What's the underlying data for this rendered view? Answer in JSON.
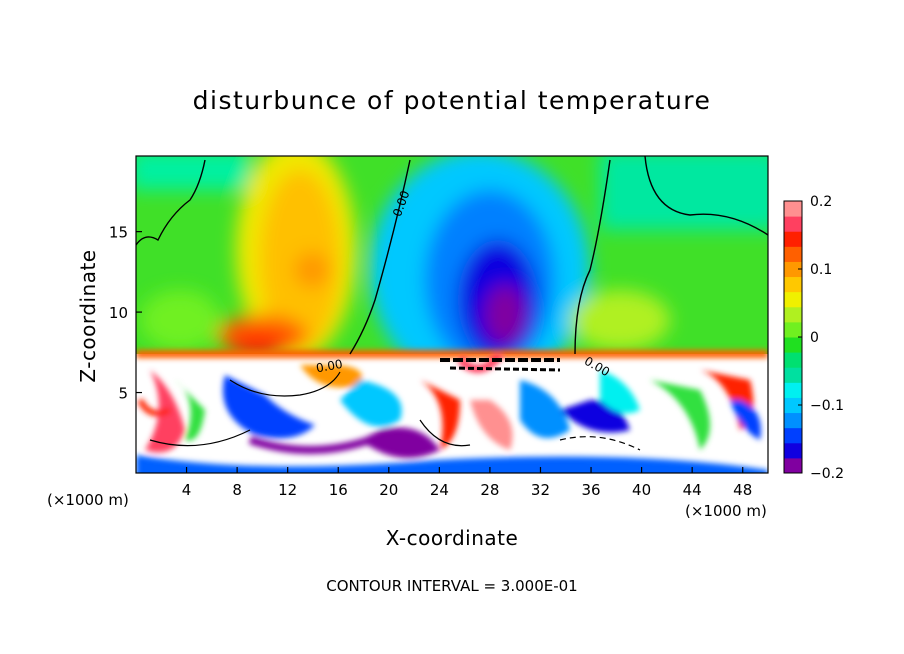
{
  "chart_data": {
    "type": "heatmap",
    "title": "disturbunce of potential temperature",
    "xlabel": "X-coordinate",
    "ylabel": "Z-coordinate",
    "x_unit": "(×1000 m)",
    "z_unit": "(×1000 m)",
    "xlim": [
      0,
      50
    ],
    "zlim": [
      0,
      19.7
    ],
    "x_ticks": [
      4,
      8,
      12,
      16,
      20,
      24,
      28,
      32,
      36,
      40,
      44,
      48
    ],
    "z_ticks": [
      5,
      10,
      15
    ],
    "colorbar": {
      "range": [
        -0.2,
        0.2
      ],
      "ticks": [
        0.2,
        0.1,
        0,
        -0.1,
        -0.2
      ],
      "tick_labels": [
        "0.2",
        "0.1",
        "0",
        "−0.1",
        "−0.2"
      ],
      "colors": [
        "#8000a0",
        "#1000e0",
        "#0040ff",
        "#0090ff",
        "#00c8ff",
        "#00f0f0",
        "#00e0a0",
        "#00e070",
        "#20e020",
        "#70f020",
        "#b0f020",
        "#f0f000",
        "#ffc800",
        "#ff9800",
        "#ff6000",
        "#ff2000",
        "#ff4060",
        "#ff9090"
      ]
    },
    "contour_labels": [
      "0.00",
      "0.00",
      "0.00"
    ],
    "footer": "CONTOUR INTERVAL = 3.000E-01"
  }
}
